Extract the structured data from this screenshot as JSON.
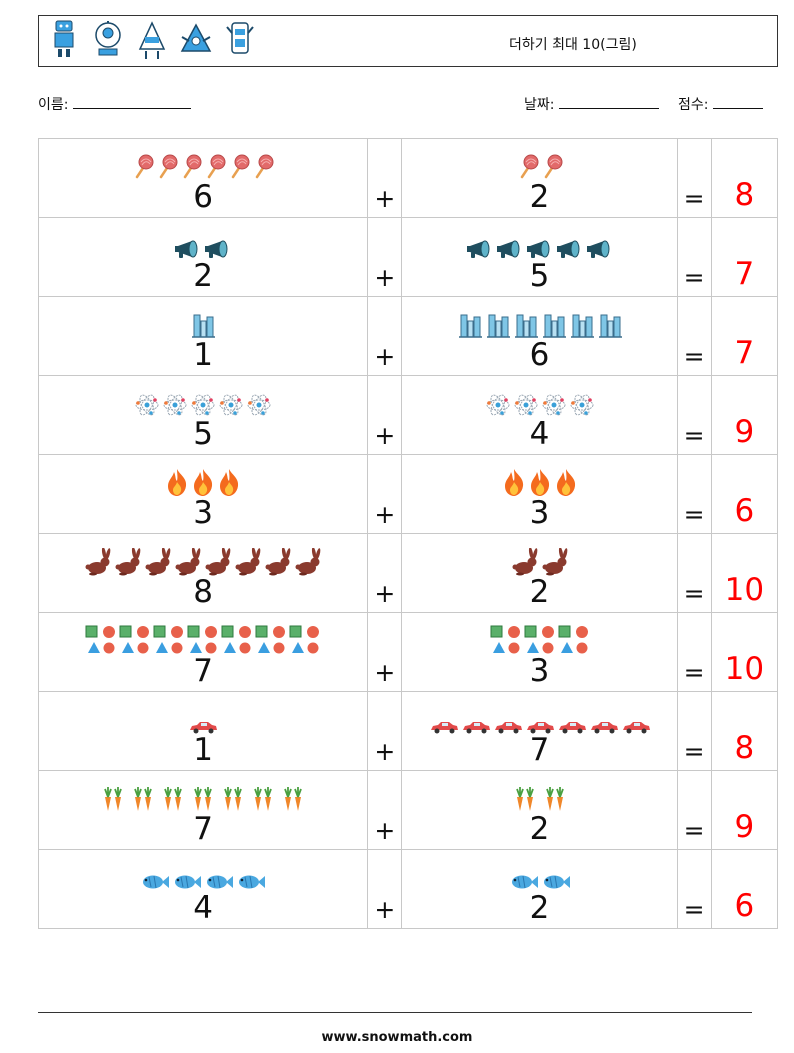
{
  "header": {
    "title": "더하기 최대 10(그림)",
    "robot_icons": [
      "robot-icon",
      "robot-icon",
      "robot-icon",
      "robot-icon",
      "robot-icon"
    ]
  },
  "fields": {
    "name_label": "이름:",
    "date_label": "날짜:",
    "score_label": "점수:"
  },
  "rows": [
    {
      "icon": "lollipop-icon",
      "a": "6",
      "b": "2",
      "plus": "+",
      "eq": "=",
      "answer": "8"
    },
    {
      "icon": "megaphone-icon",
      "a": "2",
      "b": "5",
      "plus": "+",
      "eq": "=",
      "answer": "7"
    },
    {
      "icon": "building-icon",
      "a": "1",
      "b": "6",
      "plus": "+",
      "eq": "=",
      "answer": "7"
    },
    {
      "icon": "atom-icon",
      "a": "5",
      "b": "4",
      "plus": "+",
      "eq": "=",
      "answer": "9"
    },
    {
      "icon": "fire-icon",
      "a": "3",
      "b": "3",
      "plus": "+",
      "eq": "=",
      "answer": "6"
    },
    {
      "icon": "rabbit-icon",
      "a": "8",
      "b": "2",
      "plus": "+",
      "eq": "=",
      "answer": "10"
    },
    {
      "icon": "shapes-icon",
      "a": "7",
      "b": "3",
      "plus": "+",
      "eq": "=",
      "answer": "10"
    },
    {
      "icon": "car-icon",
      "a": "1",
      "b": "7",
      "plus": "+",
      "eq": "=",
      "answer": "8"
    },
    {
      "icon": "carrot-icon",
      "a": "7",
      "b": "2",
      "plus": "+",
      "eq": "=",
      "answer": "9"
    },
    {
      "icon": "fish-icon",
      "a": "4",
      "b": "2",
      "plus": "+",
      "eq": "=",
      "answer": "6"
    }
  ],
  "footer": {
    "url": "www.snowmath.com"
  }
}
